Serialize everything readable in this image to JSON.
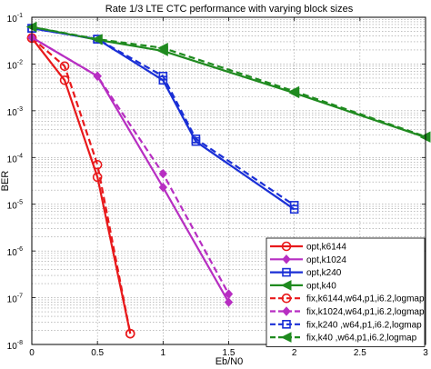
{
  "chart_data": {
    "type": "line",
    "title": "Rate 1/3 LTE CTC performance with varying block sizes",
    "xlabel": "Eb/N0",
    "ylabel": "BER",
    "xlim": [
      0,
      3
    ],
    "ylim": [
      1e-08,
      0.1
    ],
    "yscale": "log",
    "grid": true,
    "legend_position": "bottom-right",
    "x_ticks": [
      "0",
      "0.5",
      "1",
      "1.5",
      "2",
      "2.5",
      "3"
    ],
    "y_ticks": [
      {
        "value": 0.1,
        "base": "10",
        "exp": "-1"
      },
      {
        "value": 0.01,
        "base": "10",
        "exp": "-2"
      },
      {
        "value": 0.001,
        "base": "10",
        "exp": "-3"
      },
      {
        "value": 0.0001,
        "base": "10",
        "exp": "-4"
      },
      {
        "value": 1e-05,
        "base": "10",
        "exp": "-5"
      },
      {
        "value": 1e-06,
        "base": "10",
        "exp": "-6"
      },
      {
        "value": 1e-07,
        "base": "10",
        "exp": "-7"
      },
      {
        "value": 1e-08,
        "base": "10",
        "exp": "-8"
      }
    ],
    "series": [
      {
        "name": "opt,k6144",
        "color": "#e8191b",
        "dash": false,
        "marker": "circle",
        "x": [
          0,
          0.25,
          0.5,
          0.75
        ],
        "y": [
          0.036,
          0.0045,
          3.8e-05,
          1.7e-08
        ]
      },
      {
        "name": "opt,k1024",
        "color": "#b72ec2",
        "dash": false,
        "marker": "diamond",
        "x": [
          0,
          0.5,
          1,
          1.5
        ],
        "y": [
          0.037,
          0.0055,
          2.3e-05,
          8e-08
        ]
      },
      {
        "name": "opt,k240",
        "color": "#1a2fd6",
        "dash": false,
        "marker": "square",
        "x": [
          0,
          0.5,
          1,
          1.25,
          2
        ],
        "y": [
          0.058,
          0.034,
          0.0045,
          0.00022,
          7.8e-06
        ]
      },
      {
        "name": "opt,k40",
        "color": "#1f8a1f",
        "dash": false,
        "marker": "triangle-left",
        "x": [
          0,
          0.5,
          1,
          2,
          3
        ],
        "y": [
          0.062,
          0.033,
          0.019,
          0.0024,
          0.00027
        ]
      },
      {
        "name": "fix,k6144,w64,p1,i6.2,logmap",
        "color": "#e8191b",
        "dash": true,
        "marker": "circle",
        "x": [
          0,
          0.25,
          0.5,
          0.75
        ],
        "y": [
          0.036,
          0.009,
          7e-05,
          1.7e-08
        ]
      },
      {
        "name": "fix,k1024,w64,p1,i6.2,logmap",
        "color": "#b72ec2",
        "dash": true,
        "marker": "diamond",
        "x": [
          0,
          0.5,
          1,
          1.5
        ],
        "y": [
          0.037,
          0.0055,
          4.5e-05,
          1.2e-07
        ]
      },
      {
        "name": "fix,k240  ,w64,p1,i6.2,logmap",
        "color": "#1a2fd6",
        "dash": true,
        "marker": "square",
        "x": [
          0,
          0.5,
          1,
          1.25,
          2
        ],
        "y": [
          0.058,
          0.034,
          0.0055,
          0.00025,
          9.5e-06
        ]
      },
      {
        "name": "fix,k40   ,w64,p1,i6.2,logmap",
        "color": "#1f8a1f",
        "dash": true,
        "marker": "triangle-left",
        "x": [
          0,
          0.5,
          1,
          2,
          3
        ],
        "y": [
          0.062,
          0.034,
          0.022,
          0.0026,
          0.00028
        ]
      }
    ]
  }
}
